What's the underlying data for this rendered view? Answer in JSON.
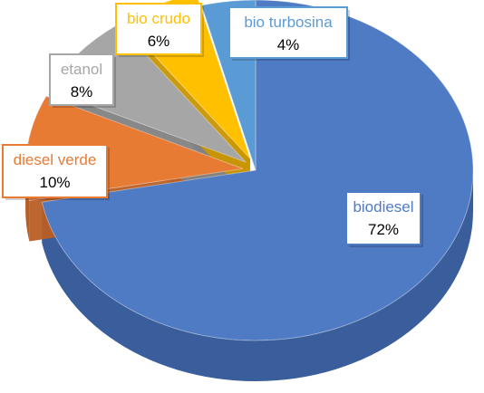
{
  "chart_data": {
    "type": "pie",
    "three_d": true,
    "title": "",
    "legend": "none",
    "slices": [
      {
        "label": "biodiesel",
        "value": 72,
        "value_label": "72%",
        "color": "#4F7BC4",
        "side_color": "#3A5E9C"
      },
      {
        "label": "diesel verde",
        "value": 10,
        "value_label": "10%",
        "color": "#E87B34",
        "side_color": "#B95E24"
      },
      {
        "label": "etanol",
        "value": 8,
        "value_label": "8%",
        "color": "#A6A6A6",
        "side_color": "#828282"
      },
      {
        "label": "bio crudo",
        "value": 6,
        "value_label": "6%",
        "color": "#FFC000",
        "side_color": "#C99600"
      },
      {
        "label": "bio turbosina",
        "value": 4,
        "value_label": "4%",
        "color": "#5B9BD5",
        "side_color": "#4277A6"
      }
    ]
  }
}
